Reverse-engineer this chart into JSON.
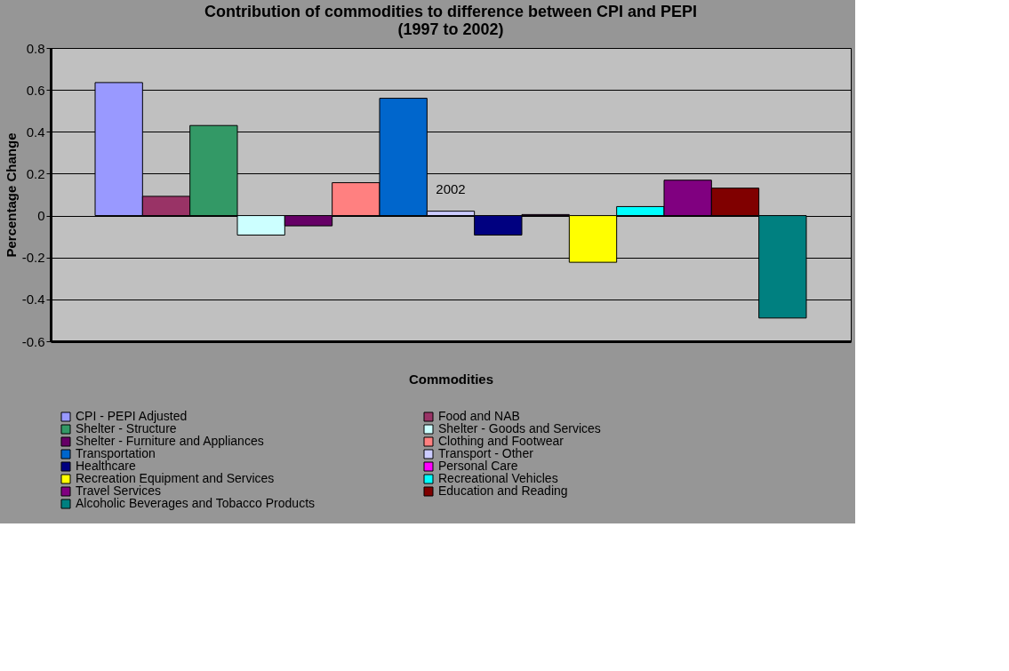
{
  "chart_data": {
    "type": "bar",
    "title": [
      "Contribution of commodities to difference between CPI and PEPI",
      "(1997 to 2002)"
    ],
    "xlabel": "Commodities",
    "ylabel": "Percentage Change",
    "categories": [
      "2002"
    ],
    "series": [
      {
        "name": "CPI - PEPI Adjusted",
        "color": "#9999ff",
        "values": [
          0.635
        ]
      },
      {
        "name": "Food and NAB",
        "color": "#993366",
        "values": [
          0.092
        ]
      },
      {
        "name": "Shelter - Structure",
        "color": "#339966",
        "values": [
          0.43
        ]
      },
      {
        "name": "Shelter - Goods and Services",
        "color": "#ccffff",
        "values": [
          -0.093
        ]
      },
      {
        "name": "Shelter - Furniture and Appliances",
        "color": "#660066",
        "values": [
          -0.049
        ]
      },
      {
        "name": "Clothing and Footwear",
        "color": "#ff8080",
        "values": [
          0.157
        ]
      },
      {
        "name": "Transportation",
        "color": "#0066cc",
        "values": [
          0.56
        ]
      },
      {
        "name": "Transport - Other",
        "color": "#ccccff",
        "values": [
          0.021
        ]
      },
      {
        "name": "Healthcare",
        "color": "#000080",
        "values": [
          -0.093
        ]
      },
      {
        "name": "Personal Care",
        "color": "#ff00ff",
        "values": [
          0.005
        ]
      },
      {
        "name": "Recreation Equipment and Services",
        "color": "#ffff00",
        "values": [
          -0.223
        ]
      },
      {
        "name": "Recreational Vehicles",
        "color": "#00ffff",
        "values": [
          0.043
        ]
      },
      {
        "name": "Travel Services",
        "color": "#800080",
        "values": [
          0.169
        ]
      },
      {
        "name": "Education and Reading",
        "color": "#800000",
        "values": [
          0.131
        ]
      },
      {
        "name": "Alcoholic Beverages and Tobacco Products",
        "color": "#008080",
        "values": [
          -0.489
        ]
      }
    ],
    "ylim": [
      -0.6,
      0.8
    ],
    "yticks": [
      -0.6,
      -0.4,
      -0.2,
      0,
      0.2,
      0.4,
      0.6,
      0.8
    ],
    "grid": "y",
    "legend": "bottom"
  }
}
